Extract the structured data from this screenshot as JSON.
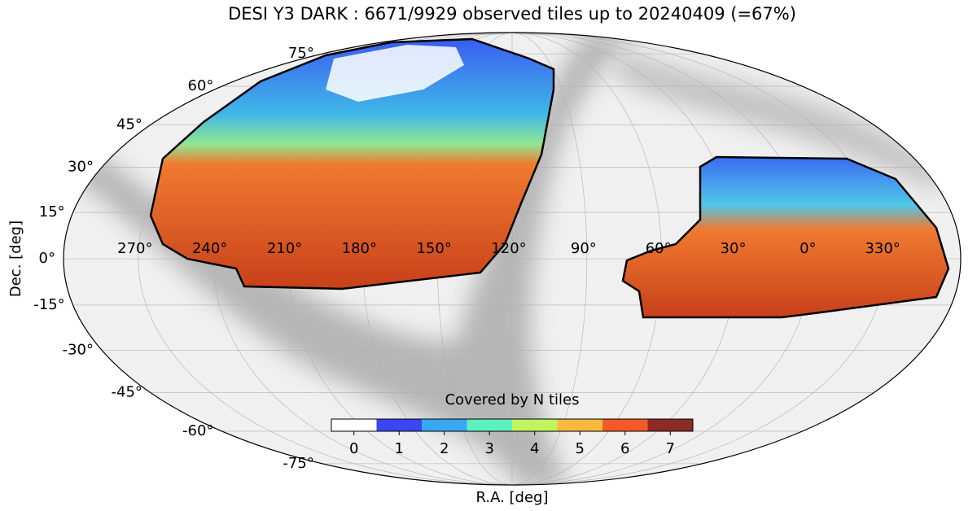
{
  "title": "DESI Y3 DARK : 6671/9929 observed tiles up to 20240409 (=67%)",
  "xlabel": "R.A. [deg]",
  "ylabel": "Dec. [deg]",
  "ra_ticks": [
    {
      "value": 270,
      "label": "270°"
    },
    {
      "value": 240,
      "label": "240°"
    },
    {
      "value": 210,
      "label": "210°"
    },
    {
      "value": 180,
      "label": "180°"
    },
    {
      "value": 150,
      "label": "150°"
    },
    {
      "value": 120,
      "label": "120°"
    },
    {
      "value": 90,
      "label": "90°"
    },
    {
      "value": 60,
      "label": "60°"
    },
    {
      "value": 30,
      "label": "30°"
    },
    {
      "value": 0,
      "label": "0°"
    },
    {
      "value": 330,
      "label": "330°"
    }
  ],
  "dec_ticks": [
    {
      "value": 75,
      "label": "75°"
    },
    {
      "value": 60,
      "label": "60°"
    },
    {
      "value": 45,
      "label": "45°"
    },
    {
      "value": 30,
      "label": "30°"
    },
    {
      "value": 15,
      "label": "15°"
    },
    {
      "value": 0,
      "label": "0°"
    },
    {
      "value": -15,
      "label": "-15°"
    },
    {
      "value": -30,
      "label": "-30°"
    },
    {
      "value": -45,
      "label": "-45°"
    },
    {
      "value": -60,
      "label": "-60°"
    },
    {
      "value": -75,
      "label": "-75°"
    }
  ],
  "colorbar": {
    "label": "Covered by N tiles",
    "ticks": [
      0,
      1,
      2,
      3,
      4,
      5,
      6,
      7
    ],
    "colors": [
      "#ffffff",
      "#3a46f0",
      "#38a8f5",
      "#5ff0c0",
      "#c0f560",
      "#fbb840",
      "#f25a2a",
      "#8c2a26"
    ]
  }
}
